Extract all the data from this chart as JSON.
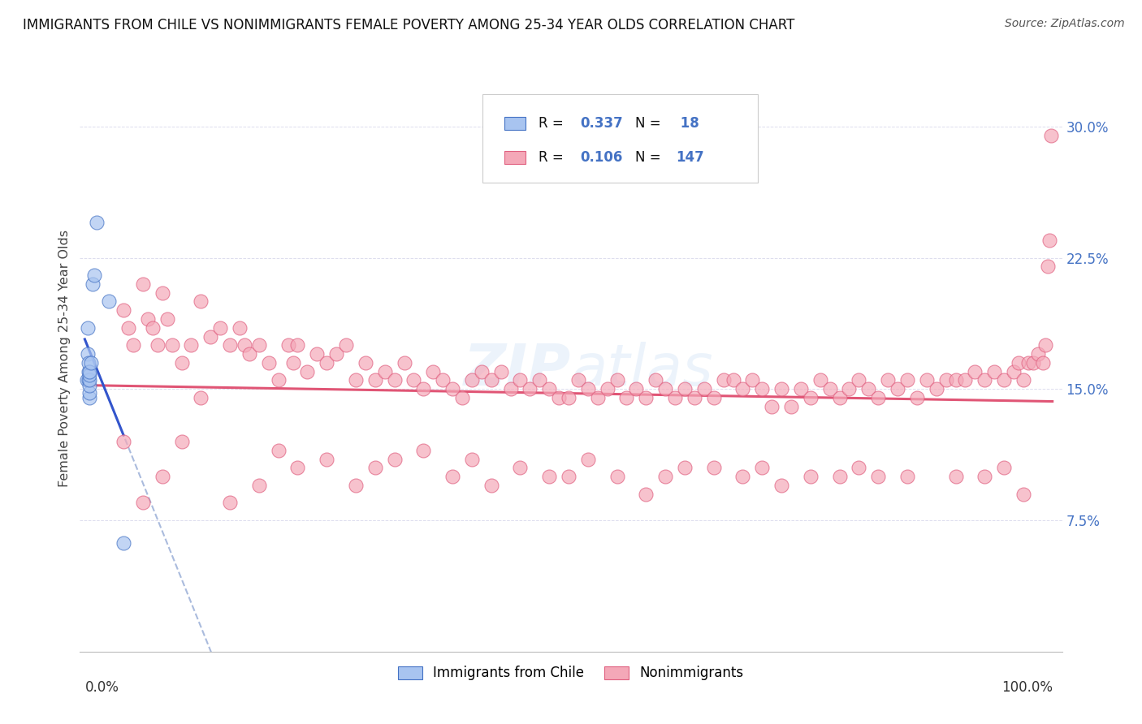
{
  "title": "IMMIGRANTS FROM CHILE VS NONIMMIGRANTS FEMALE POVERTY AMONG 25-34 YEAR OLDS CORRELATION CHART",
  "source": "Source: ZipAtlas.com",
  "ylabel": "Female Poverty Among 25-34 Year Olds",
  "xlim": [
    0,
    1
  ],
  "ylim": [
    0.0,
    0.335
  ],
  "yticks": [
    0.075,
    0.15,
    0.225,
    0.3
  ],
  "ytick_labels": [
    "7.5%",
    "15.0%",
    "22.5%",
    "30.0%"
  ],
  "color_blue_fill": "#A8C4F0",
  "color_blue_edge": "#4472C4",
  "color_pink_fill": "#F4A8B8",
  "color_pink_edge": "#E06080",
  "color_trend_blue": "#3355CC",
  "color_trend_pink": "#E05575",
  "color_trend_dashed": "#AABBDD",
  "color_grid": "#DDDDEE",
  "color_ytick": "#4472C4",
  "background_color": "#FFFFFF",
  "imm_x": [
    0.002,
    0.003,
    0.003,
    0.004,
    0.004,
    0.004,
    0.005,
    0.005,
    0.005,
    0.005,
    0.005,
    0.005,
    0.006,
    0.008,
    0.01,
    0.012,
    0.025,
    0.04
  ],
  "imm_y": [
    0.155,
    0.17,
    0.185,
    0.155,
    0.16,
    0.165,
    0.145,
    0.148,
    0.152,
    0.155,
    0.158,
    0.16,
    0.165,
    0.21,
    0.215,
    0.245,
    0.2,
    0.062
  ],
  "ni_x": [
    0.04,
    0.045,
    0.05,
    0.06,
    0.065,
    0.07,
    0.075,
    0.08,
    0.085,
    0.09,
    0.1,
    0.11,
    0.12,
    0.13,
    0.14,
    0.15,
    0.16,
    0.165,
    0.17,
    0.18,
    0.19,
    0.2,
    0.21,
    0.215,
    0.22,
    0.23,
    0.24,
    0.25,
    0.26,
    0.27,
    0.28,
    0.29,
    0.3,
    0.31,
    0.32,
    0.33,
    0.34,
    0.35,
    0.36,
    0.37,
    0.38,
    0.39,
    0.4,
    0.41,
    0.42,
    0.43,
    0.44,
    0.45,
    0.46,
    0.47,
    0.48,
    0.49,
    0.5,
    0.51,
    0.52,
    0.53,
    0.54,
    0.55,
    0.56,
    0.57,
    0.58,
    0.59,
    0.6,
    0.61,
    0.62,
    0.63,
    0.64,
    0.65,
    0.66,
    0.67,
    0.68,
    0.69,
    0.7,
    0.71,
    0.72,
    0.73,
    0.74,
    0.75,
    0.76,
    0.77,
    0.78,
    0.79,
    0.8,
    0.81,
    0.82,
    0.83,
    0.84,
    0.85,
    0.86,
    0.87,
    0.88,
    0.89,
    0.9,
    0.91,
    0.92,
    0.93,
    0.94,
    0.95,
    0.96,
    0.965,
    0.97,
    0.975,
    0.98,
    0.985,
    0.99,
    0.993,
    0.995,
    0.997,
    0.999,
    0.04,
    0.06,
    0.08,
    0.1,
    0.15,
    0.2,
    0.25,
    0.3,
    0.35,
    0.38,
    0.4,
    0.42,
    0.45,
    0.5,
    0.55,
    0.6,
    0.65,
    0.7,
    0.75,
    0.8,
    0.85,
    0.9,
    0.93,
    0.95,
    0.97,
    0.12,
    0.18,
    0.22,
    0.28,
    0.32,
    0.48,
    0.52,
    0.58,
    0.62,
    0.68,
    0.72,
    0.78,
    0.82,
    0.88,
    0.92,
    0.96
  ],
  "ni_y": [
    0.195,
    0.185,
    0.175,
    0.21,
    0.19,
    0.185,
    0.175,
    0.205,
    0.19,
    0.175,
    0.165,
    0.175,
    0.2,
    0.18,
    0.185,
    0.175,
    0.185,
    0.175,
    0.17,
    0.175,
    0.165,
    0.155,
    0.175,
    0.165,
    0.175,
    0.16,
    0.17,
    0.165,
    0.17,
    0.175,
    0.155,
    0.165,
    0.155,
    0.16,
    0.155,
    0.165,
    0.155,
    0.15,
    0.16,
    0.155,
    0.15,
    0.145,
    0.155,
    0.16,
    0.155,
    0.16,
    0.15,
    0.155,
    0.15,
    0.155,
    0.15,
    0.145,
    0.145,
    0.155,
    0.15,
    0.145,
    0.15,
    0.155,
    0.145,
    0.15,
    0.145,
    0.155,
    0.15,
    0.145,
    0.15,
    0.145,
    0.15,
    0.145,
    0.155,
    0.155,
    0.15,
    0.155,
    0.15,
    0.14,
    0.15,
    0.14,
    0.15,
    0.145,
    0.155,
    0.15,
    0.145,
    0.15,
    0.155,
    0.15,
    0.145,
    0.155,
    0.15,
    0.155,
    0.145,
    0.155,
    0.15,
    0.155,
    0.155,
    0.155,
    0.16,
    0.155,
    0.16,
    0.155,
    0.16,
    0.165,
    0.155,
    0.165,
    0.165,
    0.17,
    0.165,
    0.175,
    0.22,
    0.235,
    0.295,
    0.12,
    0.085,
    0.1,
    0.12,
    0.085,
    0.115,
    0.11,
    0.105,
    0.115,
    0.1,
    0.11,
    0.095,
    0.105,
    0.1,
    0.1,
    0.1,
    0.105,
    0.105,
    0.1,
    0.105,
    0.1,
    0.1,
    0.1,
    0.105,
    0.09,
    0.145,
    0.095,
    0.105,
    0.095,
    0.11,
    0.1,
    0.11,
    0.09,
    0.105,
    0.1,
    0.095,
    0.1,
    0.1,
    0.11,
    0.09,
    0.105
  ],
  "watermark": "ZIPatlas",
  "legend_label1": "Immigrants from Chile",
  "legend_label2": "Nonimmigrants"
}
